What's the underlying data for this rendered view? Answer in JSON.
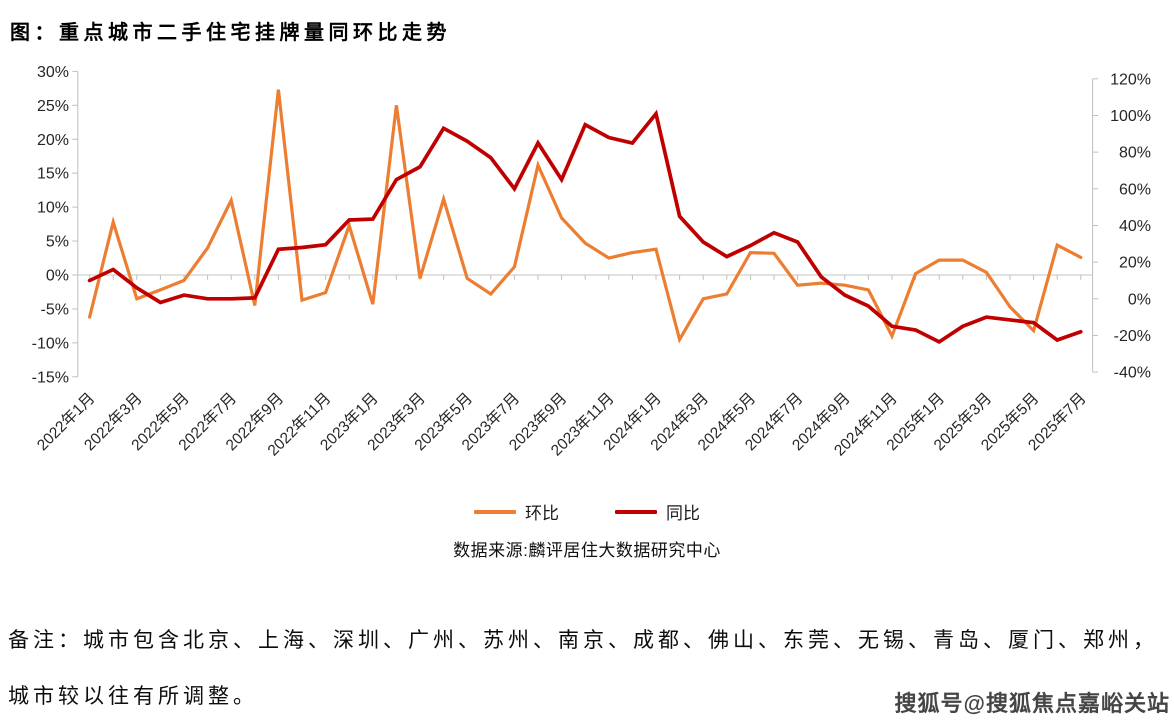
{
  "title": "图：重点城市二手住宅挂牌量同环比走势",
  "legend": {
    "mom_label": "环比",
    "yoy_label": "同比"
  },
  "source": "数据来源:麟评居住大数据研究中心",
  "notes": [
    "备注：城市包含北京、上海、深圳、广州、苏州、南京、成都、佛山、东莞、无锡、青岛、厦门、郑州，",
    "城市较以往有所调整。"
  ],
  "watermark": "搜狐号@搜狐焦点嘉峪关站",
  "colors": {
    "mom": "#ED7D31",
    "yoy": "#C00000",
    "gridline": "#D9D9D9",
    "axis": "#BFBFBF",
    "tick_text": "#262626"
  },
  "chart_data": {
    "type": "line",
    "title": "图：重点城市二手住宅挂牌量同环比走势",
    "grid": "zero-line-only",
    "legend_position": "bottom",
    "x": [
      "2022年1月",
      "2022年2月",
      "2022年3月",
      "2022年4月",
      "2022年5月",
      "2022年6月",
      "2022年7月",
      "2022年8月",
      "2022年9月",
      "2022年10月",
      "2022年11月",
      "2022年12月",
      "2023年1月",
      "2023年2月",
      "2023年3月",
      "2023年4月",
      "2023年5月",
      "2023年6月",
      "2023年7月",
      "2023年8月",
      "2023年9月",
      "2023年10月",
      "2023年11月",
      "2023年12月",
      "2024年1月",
      "2024年2月",
      "2024年3月",
      "2024年4月",
      "2024年5月",
      "2024年6月",
      "2024年7月",
      "2024年8月",
      "2024年9月",
      "2024年10月",
      "2024年11月",
      "2024年12月",
      "2025年1月",
      "2025年2月",
      "2025年3月",
      "2025年4月",
      "2025年5月",
      "2025年6月",
      "2025年7月"
    ],
    "x_tick_labels": [
      "2022年1月",
      "2022年3月",
      "2022年5月",
      "2022年7月",
      "2022年9月",
      "2022年11月",
      "2023年1月",
      "2023年3月",
      "2023年5月",
      "2023年7月",
      "2023年9月",
      "2023年11月",
      "2024年1月",
      "2024年3月",
      "2024年5月",
      "2024年7月",
      "2024年9月",
      "2024年11月",
      "2025年1月",
      "2025年3月",
      "2025年5月",
      "2025年7月"
    ],
    "series": [
      {
        "name": "环比",
        "axis": "left",
        "color": "#ED7D31",
        "values": [
          -6.2,
          7.8,
          -3.5,
          -2.2,
          -0.8,
          4,
          11,
          -4.5,
          27.3,
          -3.7,
          -2.6,
          7.3,
          -4.3,
          25,
          -0.5,
          11.2,
          -0.5,
          -2.8,
          1.2,
          16.2,
          8.4,
          4.7,
          2.5,
          3.3,
          3.8,
          -9.5,
          -3.5,
          -2.8,
          3.3,
          3.2,
          -1.5,
          -1.2,
          -1.5,
          -2.2,
          -9,
          0.2,
          2.2,
          2.2,
          0.4,
          -4.7,
          -8.2,
          4.4,
          2.6
        ]
      },
      {
        "name": "同比",
        "axis": "right",
        "color": "#C00000",
        "values": [
          10,
          16,
          6,
          -2,
          2,
          0,
          0,
          0.5,
          27,
          28,
          29.5,
          43,
          43.5,
          65,
          72,
          93,
          86,
          77,
          60,
          85,
          65,
          95,
          88,
          85,
          101,
          45,
          31,
          23,
          29,
          36,
          31,
          12,
          2,
          -4,
          -15,
          -17,
          -23.5,
          -15,
          -10,
          -11.5,
          -13,
          -22.5,
          -18
        ]
      }
    ],
    "left_axis": {
      "min": -15,
      "max": 30,
      "tick_values": [
        30,
        25,
        20,
        15,
        10,
        5,
        0,
        -5,
        -10,
        -15
      ],
      "ticks": [
        "30%",
        "25%",
        "20%",
        "15%",
        "10%",
        "5%",
        "0%",
        "-5%",
        "-10%",
        "-15%"
      ]
    },
    "right_axis": {
      "min": -40,
      "max": 120,
      "tick_values": [
        120,
        100,
        80,
        60,
        40,
        20,
        0,
        -20,
        -40
      ],
      "ticks": [
        "120%",
        "100%",
        "80%",
        "60%",
        "40%",
        "20%",
        "0%",
        "-20%",
        "-40%"
      ]
    }
  }
}
